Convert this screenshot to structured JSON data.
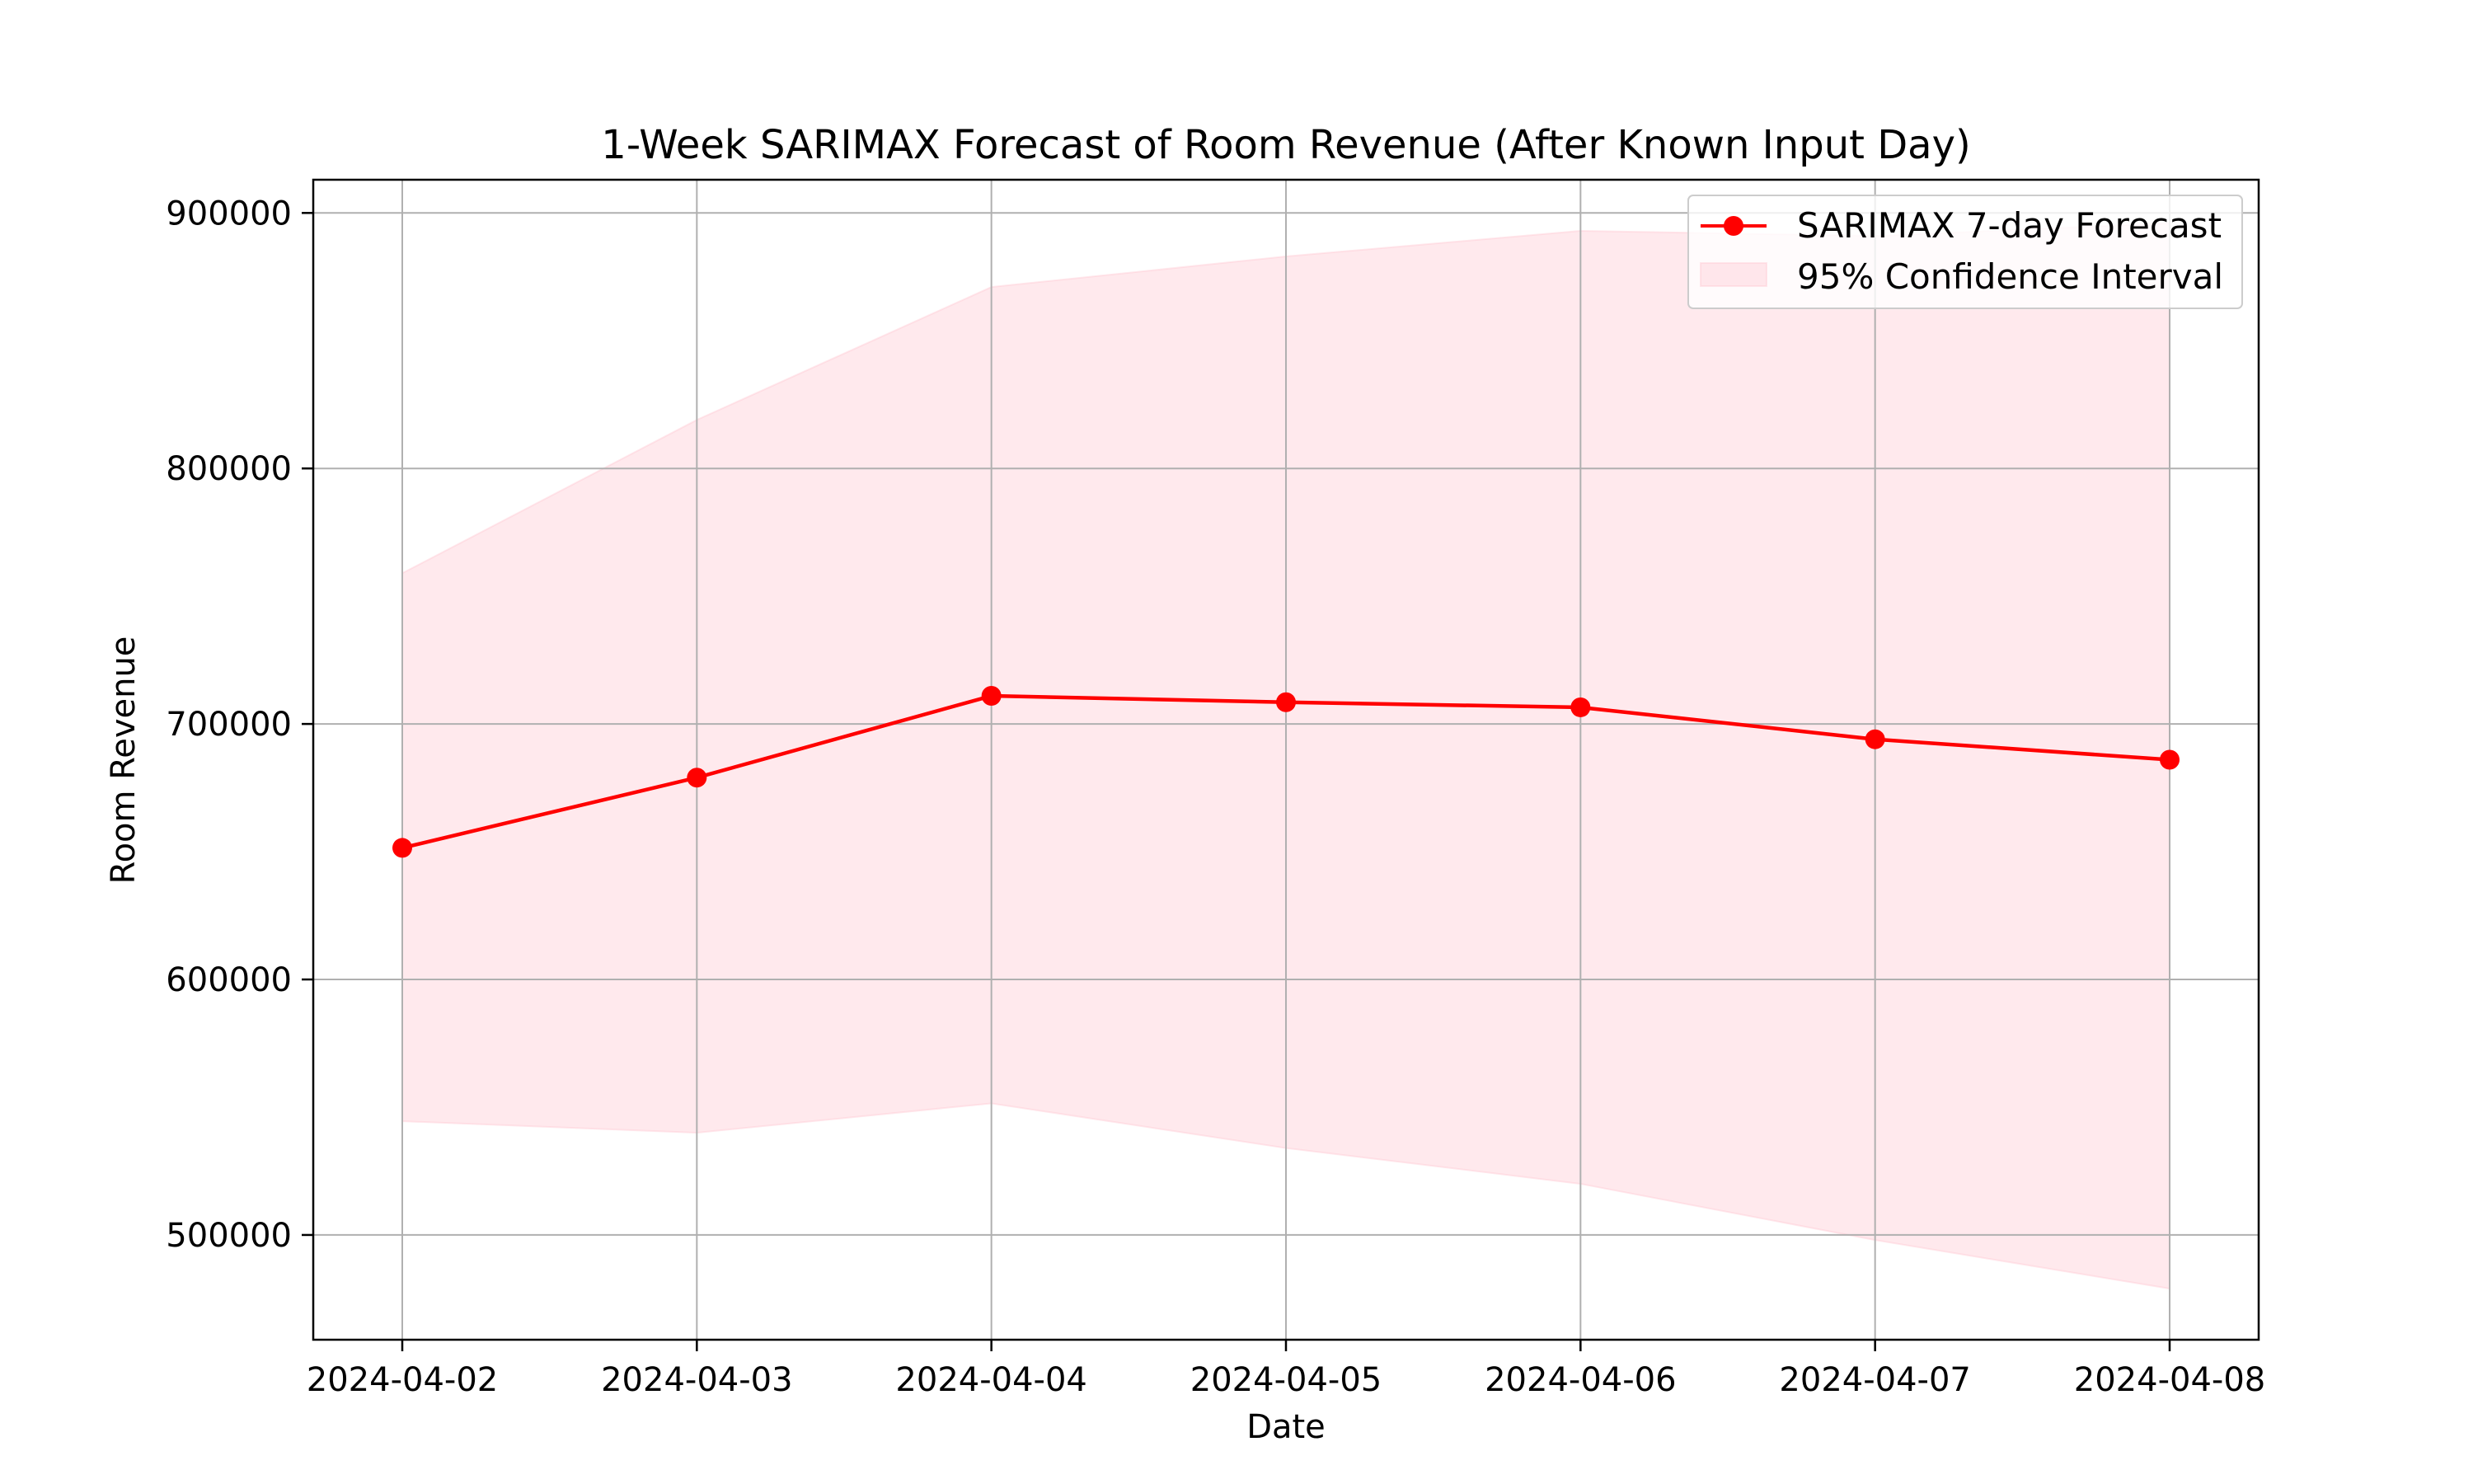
{
  "chart_data": {
    "type": "line",
    "title": "1-Week SARIMAX Forecast of Room Revenue (After Known Input Day)",
    "xlabel": "Date",
    "ylabel": "Room Revenue",
    "x": [
      "2024-04-02",
      "2024-04-03",
      "2024-04-04",
      "2024-04-05",
      "2024-04-06",
      "2024-04-07",
      "2024-04-08"
    ],
    "ylim": [
      459000,
      913000
    ],
    "yticks": [
      "500000",
      "600000",
      "700000",
      "800000",
      "900000"
    ],
    "yticks_values": [
      500000,
      600000,
      700000,
      800000,
      900000
    ],
    "grid": true,
    "legend_position": "top-right",
    "series": [
      {
        "name": "SARIMAX 7-day Forecast",
        "values": [
          651500,
          679000,
          711000,
          708500,
          706500,
          694000,
          686000
        ],
        "color": "#ff0000",
        "marker": "circle"
      }
    ],
    "band": {
      "name": "95% Confidence Interval",
      "lower": [
        544500,
        540000,
        551500,
        534000,
        520000,
        498000,
        479000
      ],
      "upper": [
        759000,
        819000,
        871000,
        883000,
        893000,
        891000,
        896000
      ],
      "color": "#ffc0cb"
    }
  }
}
